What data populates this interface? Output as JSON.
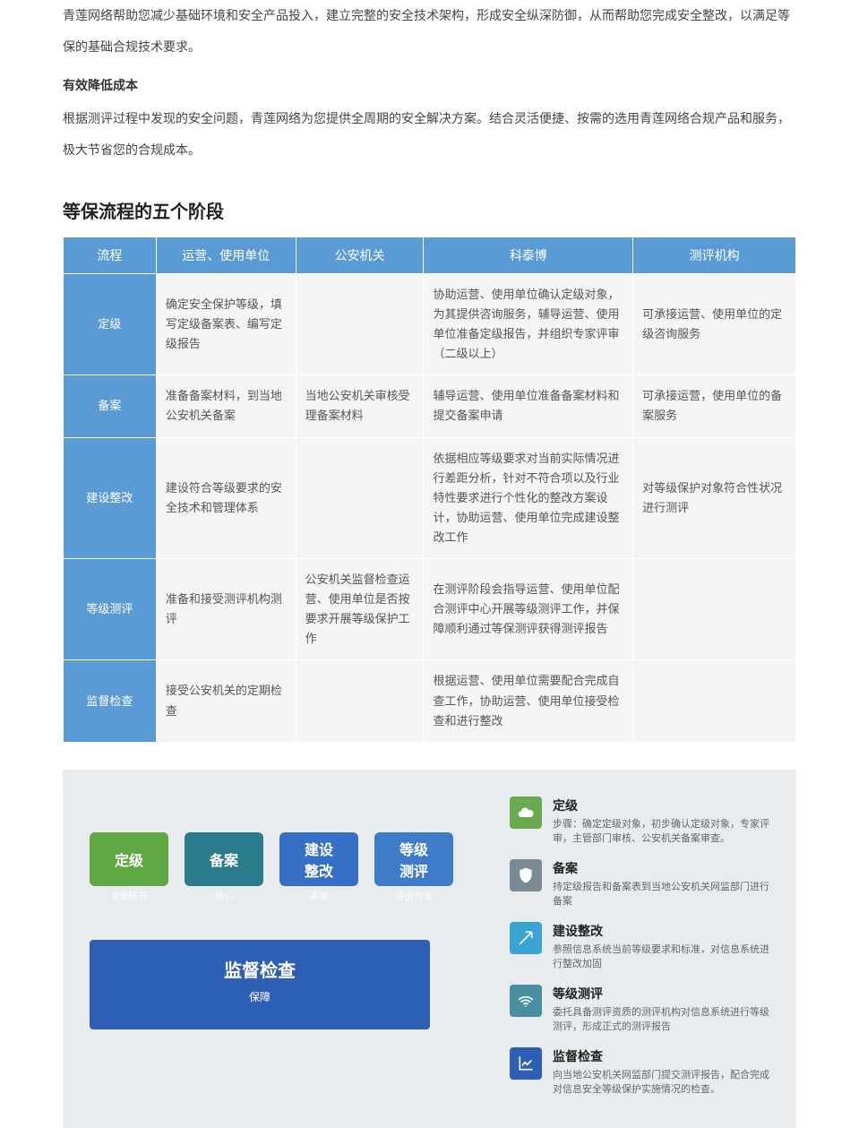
{
  "intro": {
    "p1": "青莲网络帮助您减少基础环境和安全产品投入，建立完整的安全技术架构，形成安全纵深防御，从而帮助您完成安全整改，以满足等保的基础合规技术要求。",
    "subtitle": "有效降低成本",
    "p2": "根据测评过程中发现的安全问题，青莲网络为您提供全周期的安全解决方案。结合灵活便捷、按需的选用青莲网络合规产品和服务，极大节省您的合规成本。"
  },
  "section_title": "等保流程的五个阶段",
  "table": {
    "headers": [
      "流程",
      "运营、使用单位",
      "公安机关",
      "科泰博",
      "测评机构"
    ],
    "rows": [
      {
        "h": "定级",
        "c": [
          "确定安全保护等级，填写定级备案表、编写定级报告",
          "",
          "协助运营、使用单位确认定级对象，为其提供咨询服务，辅导运营、使用单位准备定级报告，并组织专家评审（二级以上）",
          "可承接运营、使用单位的定级咨询服务"
        ]
      },
      {
        "h": "备案",
        "c": [
          "准备备案材料，到当地公安机关备案",
          "当地公安机关审核受理备案材料",
          "辅导运营、使用单位准备备案材料和提交备案申请",
          "可承接运营，使用单位的备案服务"
        ]
      },
      {
        "h": "建设整改",
        "c": [
          "建设符合等级要求的安全技术和管理体系",
          "",
          "依据相应等级要求对当前实际情况进行差距分析，针对不符合项以及行业特性要求进行个性化的整改方案设计，协助运营、使用单位完成建设整改工作",
          "对等级保护对象符合性状况进行测评"
        ]
      },
      {
        "h": "等级测评",
        "c": [
          "准备和接受测评机构测评",
          "公安机关监督检查运营、使用单位是否按要求开展等级保护工作",
          "在测评阶段会指导运营、使用单位配合测评中心开展等级测评工作，并保障顺利通过等保测评获得测评报告",
          ""
        ]
      },
      {
        "h": "监督检查",
        "c": [
          "接受公安机关的定期检查",
          "",
          "根据运营、使用单位需要配合完成自查工作，协助运营、使用单位接受检查和进行整改",
          ""
        ]
      }
    ]
  },
  "colors": {
    "header_bg": "#5b9bd5",
    "cell_bg": "#f5f5f5",
    "green": "#5fa843",
    "teal": "#2a7b8c",
    "blue1": "#3670c6",
    "blue2": "#3e7bc8",
    "big_blue": "#2d5fb5",
    "icon_green": "#6aaa4e",
    "icon_gray": "#7a8a94",
    "icon_cyan": "#3aa5d0",
    "icon_teal": "#4a8fa0",
    "icon_blue": "#2d5fb5"
  },
  "flow": [
    {
      "label": "定级",
      "sub": "首要环节",
      "color": "#5fa843"
    },
    {
      "label": "备案",
      "sub": "核心",
      "color": "#2a7b8c"
    },
    {
      "label": "建设\n整改",
      "sub": "关键",
      "color": "#3670c6"
    },
    {
      "label": "等级\n测评",
      "sub": "评价方法",
      "color": "#3e7bc8"
    }
  ],
  "bigbox": {
    "title": "监督检查",
    "sub": "保障"
  },
  "items": [
    {
      "icon": "cloud",
      "color": "#6aaa4e",
      "title": "定级",
      "desc": "步骤：确定定级对象，初步确认定级对象，专家评审，主管部门审核、公安机关备案审查。"
    },
    {
      "icon": "shield",
      "color": "#7a8a94",
      "title": "备案",
      "desc": "持定级报告和备案表到当地公安机关网监部门进行备案"
    },
    {
      "icon": "arrow",
      "color": "#3aa5d0",
      "title": "建设整改",
      "desc": "参照信息系统当前等级要求和标准，对信息系统进行整改加固"
    },
    {
      "icon": "wifi",
      "color": "#4a8fa0",
      "title": "等级测评",
      "desc": "委托具备测评资质的测评机构对信息系统进行等级测评，形成正式的测评报告"
    },
    {
      "icon": "chart",
      "color": "#2d5fb5",
      "title": "监督检查",
      "desc": "向当地公安机关网监部门提交测评报告，配合完成对信息安全等级保护实施情况的检查。"
    }
  ]
}
